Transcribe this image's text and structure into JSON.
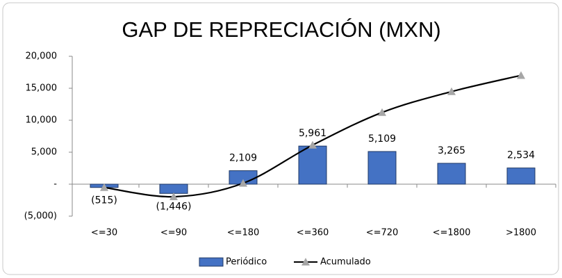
{
  "chart_data": {
    "type": "bar",
    "title": "GAP DE REPRECIACIÓN (MXN)",
    "categories": [
      "<=30",
      "<=90",
      "<=180",
      "<=360",
      "<=720",
      "<=1800",
      ">1800"
    ],
    "series": [
      {
        "name": "Periódico",
        "type": "bar",
        "color": "#4472c4",
        "values": [
          -515,
          -1446,
          2109,
          5961,
          5109,
          3265,
          2534
        ],
        "value_labels": [
          "(515)",
          "(1,446)",
          "2,109",
          "5,961",
          "5,109",
          "3,265",
          "2,534"
        ]
      },
      {
        "name": "Acumulado",
        "type": "line",
        "color": "#000000",
        "marker_color": "#a6a6a6",
        "values": [
          -515,
          -1961,
          148,
          6109,
          11218,
          14483,
          17017
        ]
      }
    ],
    "ylim": [
      -5000,
      20000
    ],
    "yticks": [
      {
        "value": -5000,
        "label": "(5,000)"
      },
      {
        "value": 0,
        "label": "-"
      },
      {
        "value": 5000,
        "label": "5,000"
      },
      {
        "value": 10000,
        "label": "10,000"
      },
      {
        "value": 15000,
        "label": "15,000"
      },
      {
        "value": 20000,
        "label": "20,000"
      }
    ],
    "legend": "bottom"
  }
}
